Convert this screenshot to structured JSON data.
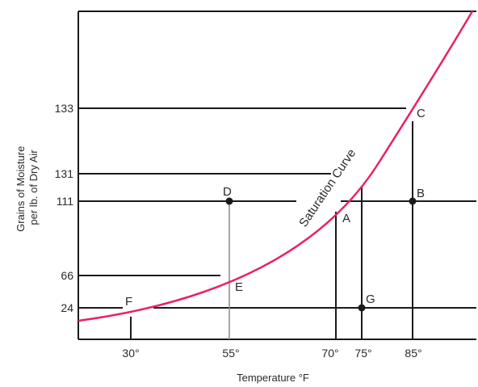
{
  "figure": {
    "y_axis_title": "Grains of Moisture\nper lb. of Dry Air",
    "x_axis_title": "Temperature °F",
    "curve_label": "Saturation Curve",
    "y_ticks": [
      "133",
      "131",
      "111",
      "66",
      "24"
    ],
    "x_ticks": [
      "30°",
      "55°",
      "70°",
      "75°",
      "85°"
    ],
    "points": [
      "A",
      "B",
      "C",
      "D",
      "E",
      "F",
      "G"
    ],
    "colors": {
      "curve": "#e8206a",
      "lines": "#1a1a1a"
    }
  }
}
